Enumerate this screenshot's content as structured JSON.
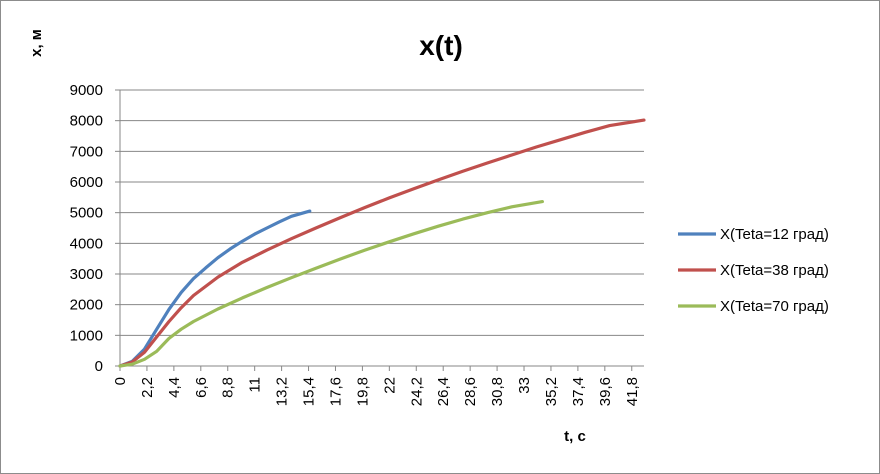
{
  "chart_data": {
    "type": "line",
    "title": "x(t)",
    "xlabel": "t, c",
    "ylabel": "x, м",
    "ylim": [
      0,
      9000
    ],
    "yticks": [
      0,
      1000,
      2000,
      3000,
      4000,
      5000,
      6000,
      7000,
      8000,
      9000
    ],
    "xticks": [
      "0",
      "2,2",
      "4,4",
      "6,6",
      "8,8",
      "11",
      "13,2",
      "15,4",
      "17,6",
      "19,8",
      "22",
      "24,2",
      "26,4",
      "28,6",
      "30,8",
      "33",
      "35,2",
      "37,4",
      "39,6",
      "41,8"
    ],
    "xlim": [
      0,
      42.8
    ],
    "grid": "horizontal",
    "legend": "right",
    "series": [
      {
        "name": "X(Teta=12 град)",
        "color": "#4f81bd",
        "x": [
          0,
          1,
          2,
          3,
          4,
          5,
          6,
          7,
          8,
          9,
          10,
          11,
          12,
          13,
          14,
          15.5
        ],
        "y": [
          0,
          150,
          550,
          1200,
          1850,
          2400,
          2850,
          3200,
          3530,
          3820,
          4070,
          4300,
          4500,
          4700,
          4880,
          5050
        ]
      },
      {
        "name": "X(Teta=38 град)",
        "color": "#c0504d",
        "x": [
          0,
          1,
          2,
          3,
          4,
          5,
          6,
          8,
          10,
          12,
          14,
          16,
          18,
          20,
          22,
          24,
          26,
          28,
          30,
          32,
          34,
          36,
          38,
          40,
          42.8
        ],
        "y": [
          0,
          130,
          450,
          950,
          1450,
          1900,
          2300,
          2900,
          3380,
          3780,
          4150,
          4500,
          4840,
          5170,
          5480,
          5780,
          6070,
          6350,
          6620,
          6880,
          7140,
          7380,
          7620,
          7840,
          8020
        ]
      },
      {
        "name": "X(Teta=70 град)",
        "color": "#9bbb59",
        "x": [
          0,
          1,
          2,
          3,
          4,
          5,
          6,
          8,
          10,
          12,
          14,
          16,
          18,
          20,
          22,
          24,
          26,
          28,
          30,
          32,
          34.5
        ],
        "y": [
          0,
          60,
          220,
          480,
          900,
          1200,
          1450,
          1860,
          2220,
          2560,
          2880,
          3190,
          3490,
          3780,
          4050,
          4310,
          4560,
          4790,
          5000,
          5190,
          5360
        ]
      }
    ]
  }
}
